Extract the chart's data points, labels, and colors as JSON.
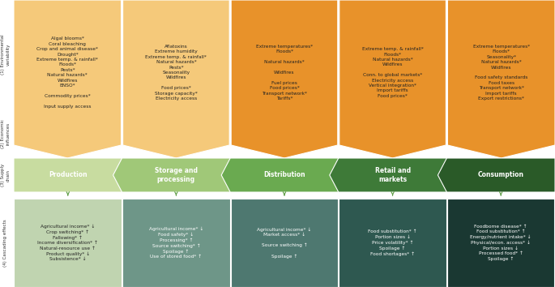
{
  "col_labels": [
    "Production",
    "Storage and\nprocessing",
    "Distribution",
    "Retail and\nmarkets",
    "Consumption"
  ],
  "env_box_colors": [
    "#F5C97A",
    "#F5C97A",
    "#E8922A",
    "#E8922A",
    "#E8922A"
  ],
  "chain_colors": [
    "#C8DCA0",
    "#A0C878",
    "#6AAA50",
    "#3E7A38",
    "#2A5A28"
  ],
  "cascade_box_colors": [
    "#C0D4B0",
    "#6E9688",
    "#4E7870",
    "#2E5850",
    "#1A3832"
  ],
  "env_texts": [
    "Algal blooms*\nCoral bleaching\nCrop and animal disease*\nDrought*\nExtreme temp. & rainfall*\nFloods*\nPests*\nNatural hazards*\nWildfires\nENSO*\n\nCommodity prices*\n\nInput supply access",
    "Aflatoxins\nExtreme humidity\nExtreme temp. & rainfall*\nNatural hazards*\nPests*\nSeasonality\nWildfires\n\nFood prices*\nStorage capacity*\nElectricity access",
    "Extreme temperatures*\nFloods*\n\nNatural hazards*\n\nWildfires\n\nFuel prices\nFood prices*\nTransport network*\nTariffs*",
    "Extreme temp. & rainfall*\nFloods*\nNatural hazards*\nWildfires\n\nConn. to global markets*\nElectricity access\nVertical integration*\nImport tariffs\nFood prices*",
    "Extreme temperatures*\nFloods*\nSeasonality*\nNatural hazards*\nWildfires\n\nFood safety standards\nFood taxes\nTransport network*\nImport tariffs\nExport restrictions*"
  ],
  "cascade_texts": [
    "Agricultural income* ↓\nCrop switching* ↑\nFallowing* ↑\nIncome diversification* ↑\nNatural-resource use ↑\nProduct quality* ↓\nSubsistence* ↓",
    "Agricultural income* ↓\nFood safety* ↓\nProcessing* ↑\nSource switching* ↑\nSpoilage ↑\nUse of stored food* ↑",
    "Agricultural income* ↓\nMarket access* ↓\n\nSource switching ↑\n\nSpoilage ↑",
    "Food substitution* ↑\nPortion sizes ↓\nPrice volatility* ↑\nSpoilage ↑\nFood shortages* ↑",
    "Foodborne disease* ↑\nFood substitution* ↑\nEnergy/nutrient intake* ↓\nPhysical/econ. access* ↓\nPortion sizes ↓\nProcessed food* ↑\nSpoilage ↑"
  ],
  "cascade_text_colors": [
    "#222222",
    "#FFFFFF",
    "#FFFFFF",
    "#FFFFFF",
    "#FFFFFF"
  ],
  "row_label_env1": "(1) Environmental\nvariability",
  "row_label_env2": "(2) Economic\ninfluences",
  "row_label_chain": "(3) Supply\nchain",
  "row_label_cascade": "(4) Cascading effects",
  "bg_color": "#FFFFFF",
  "arrow_color": "#5A9A40",
  "white": "#FFFFFF",
  "dark_text": "#222222"
}
